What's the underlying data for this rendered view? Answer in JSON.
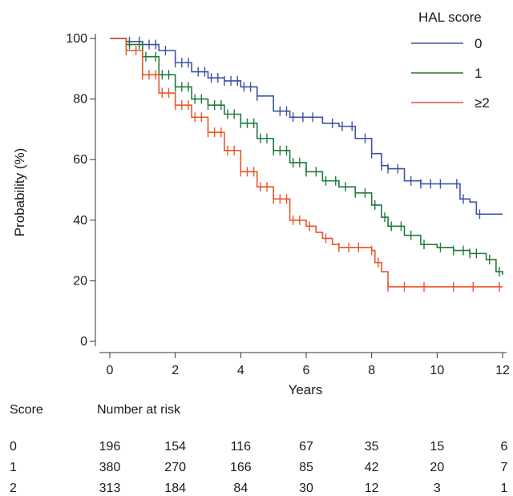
{
  "chart_data": {
    "type": "line",
    "step": true,
    "xlabel": "Years",
    "ylabel": "Probability (%)",
    "xlim": [
      0,
      12
    ],
    "ylim": [
      0,
      100
    ],
    "xticks": [
      0,
      2,
      4,
      6,
      8,
      10,
      12
    ],
    "yticks": [
      0,
      20,
      40,
      60,
      80,
      100
    ],
    "grid": false,
    "legend": {
      "title": "HAL score",
      "position": "top-right"
    },
    "series": [
      {
        "name": "0",
        "color": "#3a53a4",
        "points": [
          [
            0,
            100
          ],
          [
            0.5,
            99
          ],
          [
            1.0,
            98
          ],
          [
            1.5,
            96
          ],
          [
            2.0,
            92
          ],
          [
            2.5,
            89
          ],
          [
            3.0,
            87
          ],
          [
            3.5,
            86
          ],
          [
            4.0,
            84
          ],
          [
            4.5,
            81
          ],
          [
            5.0,
            76
          ],
          [
            5.5,
            74
          ],
          [
            6.0,
            74
          ],
          [
            6.5,
            72
          ],
          [
            7.0,
            71
          ],
          [
            7.5,
            67
          ],
          [
            8.0,
            62
          ],
          [
            8.3,
            58
          ],
          [
            8.5,
            57
          ],
          [
            9.0,
            53
          ],
          [
            9.5,
            52
          ],
          [
            10.0,
            52
          ],
          [
            10.5,
            52
          ],
          [
            10.7,
            47
          ],
          [
            11.0,
            46
          ],
          [
            11.2,
            42
          ],
          [
            12.0,
            42
          ]
        ],
        "censor_x": [
          0.6,
          0.9,
          1.2,
          1.4,
          1.7,
          2.0,
          2.2,
          2.4,
          2.7,
          2.9,
          3.1,
          3.3,
          3.5,
          3.7,
          3.9,
          4.1,
          4.3,
          4.5,
          5.2,
          5.4,
          5.6,
          5.9,
          6.2,
          6.8,
          7.1,
          7.4,
          7.8,
          8.0,
          8.3,
          8.5,
          8.8,
          9.2,
          9.5,
          9.8,
          10.1,
          10.6,
          10.8,
          11.3
        ]
      },
      {
        "name": "1",
        "color": "#1f7a3a",
        "points": [
          [
            0,
            100
          ],
          [
            0.5,
            98
          ],
          [
            1.0,
            94
          ],
          [
            1.5,
            88
          ],
          [
            2.0,
            84
          ],
          [
            2.5,
            80
          ],
          [
            3.0,
            78
          ],
          [
            3.5,
            75
          ],
          [
            4.0,
            72
          ],
          [
            4.5,
            67
          ],
          [
            5.0,
            63
          ],
          [
            5.5,
            59
          ],
          [
            6.0,
            56
          ],
          [
            6.5,
            53
          ],
          [
            7.0,
            51
          ],
          [
            7.5,
            49
          ],
          [
            8.0,
            45
          ],
          [
            8.3,
            41
          ],
          [
            8.5,
            38
          ],
          [
            9.0,
            35
          ],
          [
            9.5,
            32
          ],
          [
            10.0,
            31
          ],
          [
            10.5,
            30
          ],
          [
            11.0,
            29
          ],
          [
            11.5,
            27
          ],
          [
            11.8,
            23
          ],
          [
            12.0,
            22
          ]
        ],
        "censor_x": [
          0.6,
          0.9,
          1.1,
          1.4,
          1.6,
          1.8,
          2.0,
          2.2,
          2.4,
          2.6,
          2.8,
          3.0,
          3.2,
          3.4,
          3.6,
          3.8,
          4.0,
          4.2,
          4.4,
          4.6,
          4.8,
          5.0,
          5.2,
          5.4,
          5.6,
          5.8,
          6.0,
          6.3,
          6.6,
          6.9,
          7.2,
          7.5,
          7.8,
          8.1,
          8.4,
          8.6,
          8.9,
          9.2,
          9.6,
          10.1,
          10.5,
          10.8,
          11.0,
          11.2,
          11.6,
          11.9
        ]
      },
      {
        "name": "≥2",
        "color": "#e8562a",
        "points": [
          [
            0,
            100
          ],
          [
            0.5,
            96
          ],
          [
            1.0,
            88
          ],
          [
            1.5,
            82
          ],
          [
            2.0,
            78
          ],
          [
            2.5,
            74
          ],
          [
            3.0,
            69
          ],
          [
            3.5,
            63
          ],
          [
            4.0,
            56
          ],
          [
            4.5,
            51
          ],
          [
            5.0,
            47
          ],
          [
            5.5,
            40
          ],
          [
            6.0,
            38
          ],
          [
            6.3,
            36
          ],
          [
            6.5,
            34
          ],
          [
            6.8,
            32
          ],
          [
            7.0,
            31
          ],
          [
            7.5,
            31
          ],
          [
            8.0,
            30
          ],
          [
            8.1,
            26
          ],
          [
            8.3,
            23
          ],
          [
            8.5,
            18
          ],
          [
            9.0,
            18
          ],
          [
            10.0,
            18
          ],
          [
            11.0,
            18
          ],
          [
            12.0,
            18
          ]
        ],
        "censor_x": [
          0.5,
          0.8,
          1.0,
          1.2,
          1.4,
          1.6,
          1.8,
          2.0,
          2.2,
          2.4,
          2.6,
          2.8,
          3.0,
          3.2,
          3.4,
          3.6,
          3.8,
          4.0,
          4.2,
          4.4,
          4.6,
          4.8,
          5.0,
          5.2,
          5.4,
          5.6,
          5.8,
          6.1,
          6.6,
          7.0,
          7.3,
          7.6,
          8.0,
          8.2,
          8.5,
          9.0,
          9.6,
          10.5,
          11.1,
          11.9
        ]
      }
    ]
  },
  "risk_table": {
    "score_header": "Score",
    "header": "Number at risk",
    "rows": [
      {
        "score": "0",
        "values": [
          "196",
          "154",
          "116",
          "67",
          "35",
          "15",
          "6"
        ]
      },
      {
        "score": "1",
        "values": [
          "380",
          "270",
          "166",
          "85",
          "42",
          "20",
          "7"
        ]
      },
      {
        "score": "2",
        "values": [
          "313",
          "184",
          "84",
          "30",
          "12",
          "3",
          "1"
        ]
      }
    ]
  }
}
